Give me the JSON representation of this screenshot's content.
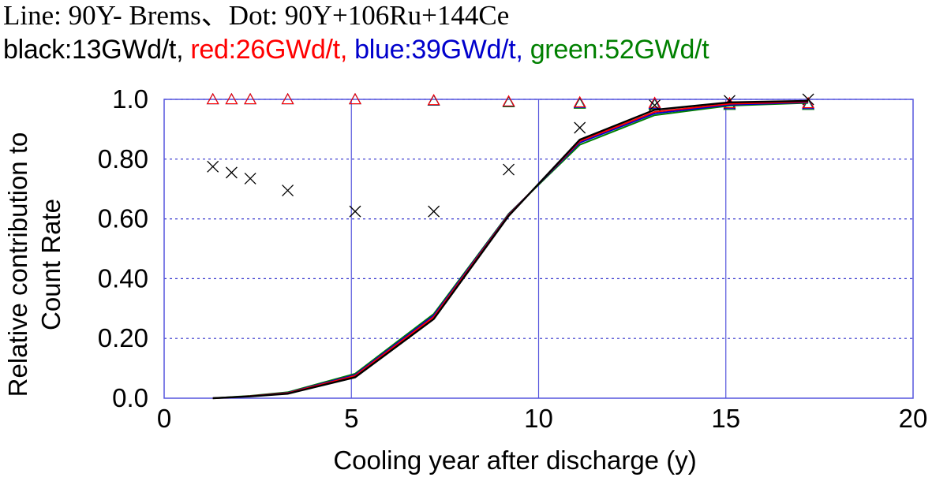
{
  "header": {
    "line1": "Line: 90Y- Brems、Dot: 90Y+106Ru+144Ce",
    "legend": [
      {
        "text": "black:13GWd/t, ",
        "color": "#000000"
      },
      {
        "text": "red:26GWd/t, ",
        "color": "#ff0000"
      },
      {
        "text": "blue:39GWd/t, ",
        "color": "#0000cc"
      },
      {
        "text": "green:52GWd/t",
        "color": "#008000"
      }
    ]
  },
  "chart_data": {
    "type": "line",
    "xlabel": "Cooling year after discharge (y)",
    "ylabel_lines": [
      "Relative contribution to",
      "Count Rate"
    ],
    "xlim": [
      0,
      20
    ],
    "ylim": [
      0,
      1.0
    ],
    "xticks": [
      0,
      5,
      10,
      15,
      20
    ],
    "xtick_labels": [
      "0",
      "5",
      "10",
      "15",
      "20"
    ],
    "yticks": [
      0.0,
      0.2,
      0.4,
      0.6,
      0.8,
      1.0
    ],
    "ytick_labels": [
      "0.0",
      "0.20",
      "0.40",
      "0.60",
      "0.80",
      "1.0"
    ],
    "grid": true,
    "x": [
      1.3,
      1.8,
      2.3,
      3.3,
      5.1,
      7.2,
      9.2,
      11.1,
      13.1,
      15.1,
      17.2
    ],
    "series": [
      {
        "color": "#000000",
        "line": [
          0.0,
          0.003,
          0.006,
          0.015,
          0.07,
          0.265,
          0.61,
          0.865,
          0.965,
          0.99,
          0.995
        ],
        "dots": [
          0.775,
          0.755,
          0.735,
          0.695,
          0.625,
          0.625,
          0.765,
          0.905,
          0.98,
          0.995,
          1.0
        ]
      },
      {
        "color": "#ff0000",
        "line": [
          0.0,
          0.003,
          0.007,
          0.017,
          0.075,
          0.272,
          0.613,
          0.86,
          0.958,
          0.985,
          0.992
        ],
        "dots": [
          1.0,
          1.0,
          1.0,
          1.0,
          1.0,
          0.997,
          0.993,
          0.99,
          0.988,
          0.987,
          0.987
        ]
      },
      {
        "color": "#0000cc",
        "line": [
          0.0,
          0.003,
          0.007,
          0.018,
          0.078,
          0.277,
          0.615,
          0.855,
          0.953,
          0.982,
          0.99
        ],
        "dots": [
          1.0,
          1.0,
          1.0,
          1.0,
          1.0,
          0.996,
          0.992,
          0.988,
          0.985,
          0.984,
          0.984
        ]
      },
      {
        "color": "#008000",
        "line": [
          0.0,
          0.004,
          0.008,
          0.02,
          0.082,
          0.282,
          0.617,
          0.848,
          0.947,
          0.979,
          0.988
        ],
        "dots": [
          1.0,
          1.0,
          1.0,
          1.0,
          1.0,
          0.995,
          0.99,
          0.985,
          0.982,
          0.981,
          0.981
        ]
      }
    ]
  }
}
